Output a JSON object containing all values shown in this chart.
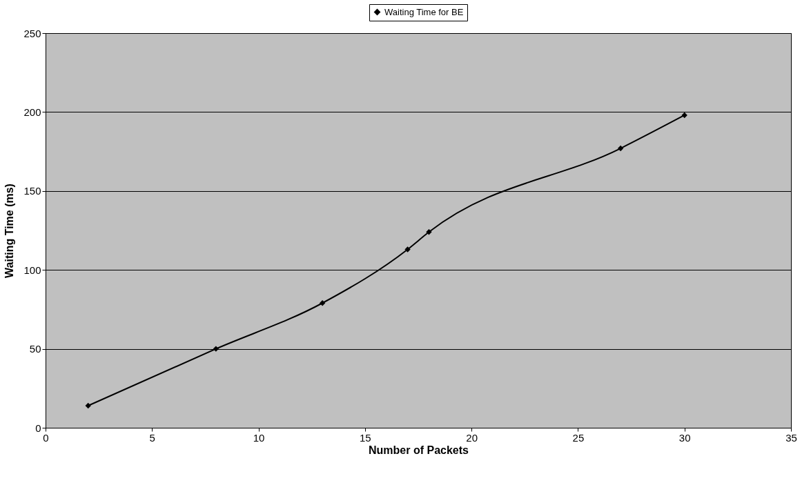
{
  "chart_data": {
    "type": "line",
    "xlabel": "Number of Packets",
    "ylabel": "Waiting Time (ms)",
    "x": [
      2,
      8,
      13,
      17,
      18,
      27,
      30
    ],
    "series": [
      {
        "name": "Waiting Time for BE",
        "color": "#000000",
        "values": [
          14,
          50,
          79,
          113,
          124,
          177,
          198
        ]
      }
    ],
    "xlim": [
      0,
      35
    ],
    "xticks": [
      0,
      5,
      10,
      15,
      20,
      25,
      30,
      35
    ],
    "ylim": [
      0,
      250
    ],
    "yticks": [
      0,
      50,
      100,
      150,
      200,
      250
    ],
    "grid": "y",
    "legend": "top",
    "marker": "diamond",
    "line_style": "solid"
  }
}
